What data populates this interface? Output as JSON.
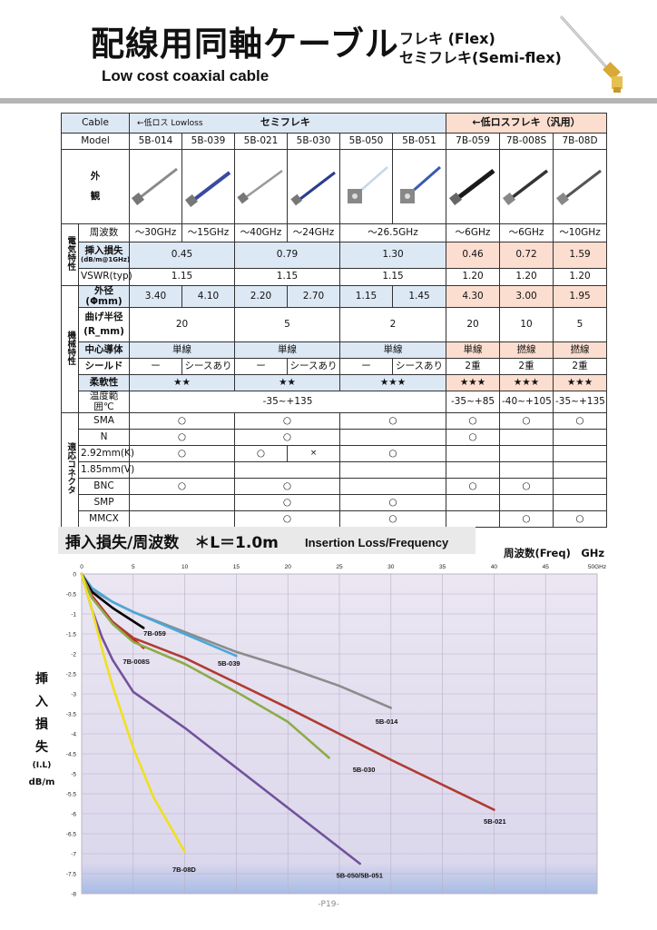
{
  "header": {
    "title": "配線用同軸ケーブル",
    "flex_line1": "フレキ (Flex)",
    "flex_line2": "セミフレキ(Semi-flex)",
    "subtitle": "Low cost coaxial cable"
  },
  "table": {
    "cable_label": "Cable",
    "lowloss_label": "←低ロス Lowloss",
    "semiflex_label": "セミフレキ",
    "flex_label": "←低ロスフレキ（汎用）",
    "model_label": "Model",
    "models": [
      "5B-014",
      "5B-039",
      "5B-021",
      "5B-030",
      "5B-050",
      "5B-051",
      "7B-059",
      "7B-008S",
      "7B-08D"
    ],
    "appearance_label_1": "外",
    "appearance_label_2": "観",
    "electrical_group": "電気特性",
    "mechanical_group": "機械特性",
    "connector_group": "適応コネクタ",
    "freq_label": "周波数",
    "freq": [
      "～30GHz",
      "～15GHz",
      "～40GHz",
      "～24GHz",
      "～26.5GHz",
      "～6GHz",
      "～6GHz",
      "～10GHz"
    ],
    "il_label": "挿入損失",
    "il_unit": "(dB/m@1GHz)",
    "il": [
      "0.45",
      "0.79",
      "1.30",
      "0.46",
      "0.72",
      "1.59"
    ],
    "vswr_label": "VSWR(typ)",
    "vswr": [
      "1.15",
      "1.15",
      "1.15",
      "1.20",
      "1.20",
      "1.20"
    ],
    "od_label": "外径(Φmm)",
    "od": [
      "3.40",
      "4.10",
      "2.20",
      "2.70",
      "1.15",
      "1.45",
      "4.30",
      "3.00",
      "1.95"
    ],
    "bend_label_1": "曲げ半径",
    "bend_label_2": "(R_mm)",
    "bend": [
      "20",
      "5",
      "2",
      "20",
      "10",
      "5"
    ],
    "center_label": "中心導体",
    "center": [
      "単線",
      "単線",
      "単線",
      "単線",
      "撚線",
      "撚線"
    ],
    "shield_label": "シールド",
    "shield": [
      "ー",
      "シースあり",
      "ー",
      "シースあり",
      "ー",
      "シースあり",
      "2重",
      "2重",
      "2重"
    ],
    "flex_row_label": "柔軟性",
    "flexibility": [
      "★★",
      "★★",
      "★★★",
      "★★★",
      "★★★",
      "★★★"
    ],
    "temp_label": "温度範囲℃",
    "temp": [
      "-35~+135",
      "-35~+85",
      "-40~+105",
      "-35~+135"
    ],
    "connectors": {
      "sma": "SMA",
      "n": "N",
      "k292": "2.92mm(K)",
      "v185": "1.85mm(V)",
      "bnc": "BNC",
      "smp": "SMP",
      "mmcx": "MMCX"
    },
    "ok_mark": "○",
    "ng_mark": "×"
  },
  "graph": {
    "title": "挿入損失/周波数　＊L＝1.0m",
    "title_en": "Insertion Loss/Frequency",
    "freq_axis_label": "周波数(Freq)　GHz",
    "y_label_chars": [
      "挿",
      "入",
      "損",
      "失"
    ],
    "y_label_unit_1": "(I.L)",
    "y_label_unit_2": "dB/m"
  },
  "chart_data": {
    "type": "line",
    "xlim": [
      0,
      50
    ],
    "ylim": [
      -8,
      0
    ],
    "x_ticks": [
      "0",
      "5",
      "10",
      "15",
      "20",
      "25",
      "30",
      "35",
      "40",
      "45",
      "50GHz"
    ],
    "y_ticks": [
      "0",
      "-0.5",
      "-1",
      "-1.5",
      "-2",
      "-2.5",
      "-3",
      "-3.5",
      "-4",
      "-4.5",
      "-5",
      "-5.5",
      "-6",
      "-6.5",
      "-7",
      "-7.5",
      "-8"
    ],
    "grid": true,
    "series": [
      {
        "name": "5B-014",
        "color": "#8c8c8c",
        "x": [
          0,
          1,
          3,
          5,
          10,
          15,
          20,
          25,
          30
        ],
        "y": [
          0,
          -0.4,
          -0.7,
          -0.95,
          -1.45,
          -1.95,
          -2.35,
          -2.8,
          -3.35
        ]
      },
      {
        "name": "5B-039",
        "color": "#4aa8d8",
        "x": [
          0,
          1,
          3,
          5,
          10,
          15
        ],
        "y": [
          0,
          -0.35,
          -0.7,
          -0.95,
          -1.5,
          -2.05
        ]
      },
      {
        "name": "7B-059",
        "color": "#000000",
        "x": [
          0,
          1,
          3,
          6
        ],
        "y": [
          0,
          -0.45,
          -0.85,
          -1.35
        ]
      },
      {
        "name": "7B-008S",
        "color": "#cc1e1e",
        "x": [
          0,
          1,
          3,
          6
        ],
        "y": [
          0,
          -0.55,
          -1.2,
          -1.85
        ]
      },
      {
        "name": "5B-021",
        "color": "#b03b32",
        "x": [
          0,
          1,
          3,
          5,
          10,
          20,
          30,
          40
        ],
        "y": [
          0,
          -0.6,
          -1.2,
          -1.6,
          -2.1,
          -3.35,
          -4.65,
          -5.9
        ]
      },
      {
        "name": "5B-030",
        "color": "#8cac48",
        "x": [
          0,
          1,
          3,
          5,
          10,
          15,
          20,
          24
        ],
        "y": [
          0,
          -0.6,
          -1.25,
          -1.7,
          -2.25,
          -2.95,
          -3.7,
          -4.6
        ]
      },
      {
        "name": "5B-050/5B-051",
        "color": "#72529c",
        "x": [
          0,
          1,
          2,
          3,
          5,
          10,
          15,
          20,
          27
        ],
        "y": [
          0,
          -0.9,
          -1.6,
          -2.15,
          -2.95,
          -3.85,
          -4.85,
          -5.85,
          -7.25
        ]
      },
      {
        "name": "7B-08D",
        "color": "#f0e020",
        "x": [
          0,
          1,
          2,
          3,
          5,
          7,
          10
        ],
        "y": [
          0,
          -0.9,
          -1.9,
          -2.8,
          -4.35,
          -5.6,
          -6.95
        ]
      }
    ],
    "labels": [
      "7B-059",
      "7B-008S",
      "5B-039",
      "5B-014",
      "5B-030",
      "5B-021",
      "7B-08D",
      "5B-050/5B-051"
    ]
  },
  "footer": {
    "page": "-P19-"
  },
  "colors": {
    "blue_cell": "#dde8f5",
    "orange_cell": "#fbded0",
    "gray_cell": "#ededed"
  }
}
